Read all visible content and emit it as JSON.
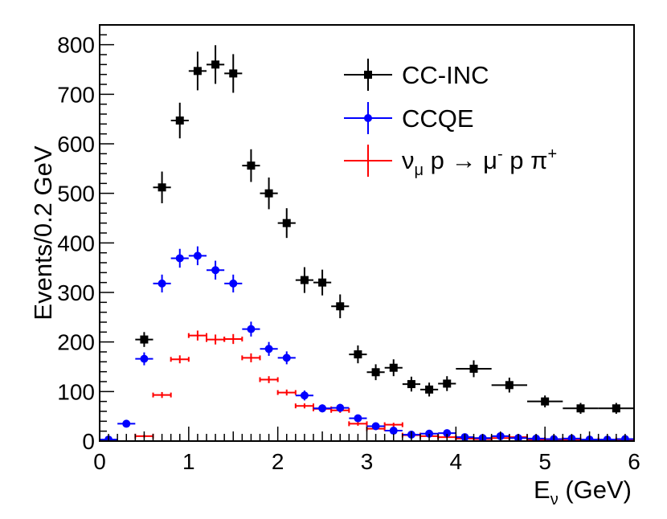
{
  "chart_data": {
    "type": "scatter",
    "title": "",
    "xlabel": "E_ν (GeV)",
    "xlabel_main": "E",
    "xlabel_sub": "ν",
    "xlabel_unit": " (GeV)",
    "ylabel": "Events/0.2 GeV",
    "xlim": [
      0,
      6
    ],
    "ylim": [
      0,
      840
    ],
    "x_ticks": [
      0,
      1,
      2,
      3,
      4,
      5,
      6
    ],
    "y_ticks": [
      0,
      100,
      200,
      300,
      400,
      500,
      600,
      700,
      800
    ],
    "legend_position": "top-right",
    "series": [
      {
        "name": "CC-INC",
        "color": "#000000",
        "marker": "square",
        "points": [
          {
            "x": 0.5,
            "y": 205,
            "xerr": 0.1,
            "yerr": 15
          },
          {
            "x": 0.7,
            "y": 512,
            "xerr": 0.1,
            "yerr": 32
          },
          {
            "x": 0.9,
            "y": 647,
            "xerr": 0.1,
            "yerr": 36
          },
          {
            "x": 1.1,
            "y": 747,
            "xerr": 0.1,
            "yerr": 39
          },
          {
            "x": 1.3,
            "y": 760,
            "xerr": 0.1,
            "yerr": 39
          },
          {
            "x": 1.5,
            "y": 742,
            "xerr": 0.1,
            "yerr": 39
          },
          {
            "x": 1.7,
            "y": 556,
            "xerr": 0.1,
            "yerr": 33
          },
          {
            "x": 1.9,
            "y": 500,
            "xerr": 0.1,
            "yerr": 32
          },
          {
            "x": 2.1,
            "y": 440,
            "xerr": 0.1,
            "yerr": 30
          },
          {
            "x": 2.3,
            "y": 325,
            "xerr": 0.1,
            "yerr": 26
          },
          {
            "x": 2.5,
            "y": 320,
            "xerr": 0.1,
            "yerr": 26
          },
          {
            "x": 2.7,
            "y": 272,
            "xerr": 0.1,
            "yerr": 24
          },
          {
            "x": 2.9,
            "y": 175,
            "xerr": 0.1,
            "yerr": 18
          },
          {
            "x": 3.1,
            "y": 139,
            "xerr": 0.1,
            "yerr": 16
          },
          {
            "x": 3.3,
            "y": 148,
            "xerr": 0.1,
            "yerr": 17
          },
          {
            "x": 3.5,
            "y": 115,
            "xerr": 0.1,
            "yerr": 15
          },
          {
            "x": 3.7,
            "y": 104,
            "xerr": 0.1,
            "yerr": 14
          },
          {
            "x": 3.9,
            "y": 116,
            "xerr": 0.1,
            "yerr": 15
          },
          {
            "x": 4.2,
            "y": 146,
            "xerr": 0.2,
            "yerr": 17
          },
          {
            "x": 4.6,
            "y": 113,
            "xerr": 0.2,
            "yerr": 15
          },
          {
            "x": 5.0,
            "y": 80,
            "xerr": 0.2,
            "yerr": 12
          },
          {
            "x": 5.4,
            "y": 66,
            "xerr": 0.2,
            "yerr": 11
          },
          {
            "x": 5.8,
            "y": 66,
            "xerr": 0.2,
            "yerr": 11
          }
        ]
      },
      {
        "name": "CCQE",
        "color": "#0000ff",
        "marker": "circle",
        "points": [
          {
            "x": 0.1,
            "y": 3,
            "xerr": 0.1,
            "yerr": 2
          },
          {
            "x": 0.3,
            "y": 35,
            "xerr": 0.1,
            "yerr": 6
          },
          {
            "x": 0.5,
            "y": 166,
            "xerr": 0.1,
            "yerr": 13
          },
          {
            "x": 0.7,
            "y": 318,
            "xerr": 0.1,
            "yerr": 18
          },
          {
            "x": 0.9,
            "y": 369,
            "xerr": 0.1,
            "yerr": 19
          },
          {
            "x": 1.1,
            "y": 374,
            "xerr": 0.1,
            "yerr": 19
          },
          {
            "x": 1.3,
            "y": 345,
            "xerr": 0.1,
            "yerr": 19
          },
          {
            "x": 1.5,
            "y": 318,
            "xerr": 0.1,
            "yerr": 18
          },
          {
            "x": 1.7,
            "y": 226,
            "xerr": 0.1,
            "yerr": 15
          },
          {
            "x": 1.9,
            "y": 186,
            "xerr": 0.1,
            "yerr": 14
          },
          {
            "x": 2.1,
            "y": 168,
            "xerr": 0.1,
            "yerr": 13
          },
          {
            "x": 2.3,
            "y": 92,
            "xerr": 0.1,
            "yerr": 10
          },
          {
            "x": 2.5,
            "y": 66,
            "xerr": 0.1,
            "yerr": 8
          },
          {
            "x": 2.7,
            "y": 67,
            "xerr": 0.1,
            "yerr": 8
          },
          {
            "x": 2.9,
            "y": 46,
            "xerr": 0.1,
            "yerr": 7
          },
          {
            "x": 3.1,
            "y": 30,
            "xerr": 0.1,
            "yerr": 6
          },
          {
            "x": 3.3,
            "y": 21,
            "xerr": 0.1,
            "yerr": 5
          },
          {
            "x": 3.5,
            "y": 13,
            "xerr": 0.1,
            "yerr": 4
          },
          {
            "x": 3.7,
            "y": 15,
            "xerr": 0.1,
            "yerr": 4
          },
          {
            "x": 3.9,
            "y": 16,
            "xerr": 0.1,
            "yerr": 4
          },
          {
            "x": 4.1,
            "y": 8,
            "xerr": 0.1,
            "yerr": 3
          },
          {
            "x": 4.3,
            "y": 6,
            "xerr": 0.1,
            "yerr": 3
          },
          {
            "x": 4.5,
            "y": 10,
            "xerr": 0.1,
            "yerr": 3
          },
          {
            "x": 4.7,
            "y": 6,
            "xerr": 0.1,
            "yerr": 3
          },
          {
            "x": 4.9,
            "y": 5,
            "xerr": 0.1,
            "yerr": 2
          },
          {
            "x": 5.1,
            "y": 4,
            "xerr": 0.1,
            "yerr": 2
          },
          {
            "x": 5.3,
            "y": 5,
            "xerr": 0.1,
            "yerr": 2
          },
          {
            "x": 5.5,
            "y": 3,
            "xerr": 0.1,
            "yerr": 2
          },
          {
            "x": 5.7,
            "y": 3,
            "xerr": 0.1,
            "yerr": 2
          },
          {
            "x": 5.9,
            "y": 4,
            "xerr": 0.1,
            "yerr": 2
          }
        ]
      },
      {
        "name": "ν_μ p → μ⁻ p π⁺",
        "color": "#ff0000",
        "marker": "none",
        "points": [
          {
            "x": 0.5,
            "y": 10,
            "xerr": 0.1,
            "yerr": 3
          },
          {
            "x": 0.7,
            "y": 93,
            "xerr": 0.1,
            "yerr": 6
          },
          {
            "x": 0.9,
            "y": 165,
            "xerr": 0.1,
            "yerr": 8
          },
          {
            "x": 1.1,
            "y": 213,
            "xerr": 0.1,
            "yerr": 10
          },
          {
            "x": 1.3,
            "y": 205,
            "xerr": 0.1,
            "yerr": 10
          },
          {
            "x": 1.5,
            "y": 206,
            "xerr": 0.1,
            "yerr": 10
          },
          {
            "x": 1.7,
            "y": 168,
            "xerr": 0.1,
            "yerr": 9
          },
          {
            "x": 1.9,
            "y": 124,
            "xerr": 0.1,
            "yerr": 7
          },
          {
            "x": 2.1,
            "y": 98,
            "xerr": 0.1,
            "yerr": 6
          },
          {
            "x": 2.3,
            "y": 71,
            "xerr": 0.1,
            "yerr": 5
          },
          {
            "x": 2.5,
            "y": 65,
            "xerr": 0.1,
            "yerr": 5
          },
          {
            "x": 2.7,
            "y": 62,
            "xerr": 0.1,
            "yerr": 5
          },
          {
            "x": 2.9,
            "y": 35,
            "xerr": 0.1,
            "yerr": 4
          },
          {
            "x": 3.1,
            "y": 25,
            "xerr": 0.1,
            "yerr": 3
          },
          {
            "x": 3.3,
            "y": 33,
            "xerr": 0.1,
            "yerr": 4
          },
          {
            "x": 3.5,
            "y": 12,
            "xerr": 0.1,
            "yerr": 3
          },
          {
            "x": 3.7,
            "y": 10,
            "xerr": 0.1,
            "yerr": 3
          },
          {
            "x": 3.9,
            "y": 8,
            "xerr": 0.1,
            "yerr": 2
          },
          {
            "x": 4.1,
            "y": 5,
            "xerr": 0.1,
            "yerr": 2
          },
          {
            "x": 4.3,
            "y": 4,
            "xerr": 0.1,
            "yerr": 2
          },
          {
            "x": 4.5,
            "y": 6,
            "xerr": 0.1,
            "yerr": 2
          },
          {
            "x": 4.7,
            "y": 8,
            "xerr": 0.1,
            "yerr": 2
          },
          {
            "x": 4.9,
            "y": 3,
            "xerr": 0.1,
            "yerr": 2
          },
          {
            "x": 5.1,
            "y": 3,
            "xerr": 0.1,
            "yerr": 2
          },
          {
            "x": 5.3,
            "y": 2,
            "xerr": 0.1,
            "yerr": 2
          },
          {
            "x": 5.5,
            "y": 2,
            "xerr": 0.1,
            "yerr": 2
          },
          {
            "x": 5.7,
            "y": 2,
            "xerr": 0.1,
            "yerr": 2
          },
          {
            "x": 5.9,
            "y": 2,
            "xerr": 0.1,
            "yerr": 2
          }
        ]
      }
    ],
    "legend": {
      "entries": [
        {
          "label": "CC-INC",
          "series": 0
        },
        {
          "label": "CCQE",
          "series": 1
        },
        {
          "series": 2,
          "parts": {
            "nu": "ν",
            "mu_sub": "μ",
            "p1": " p → μ",
            "minus": "-",
            "p2": " p π",
            "plus": "+"
          }
        }
      ]
    }
  }
}
